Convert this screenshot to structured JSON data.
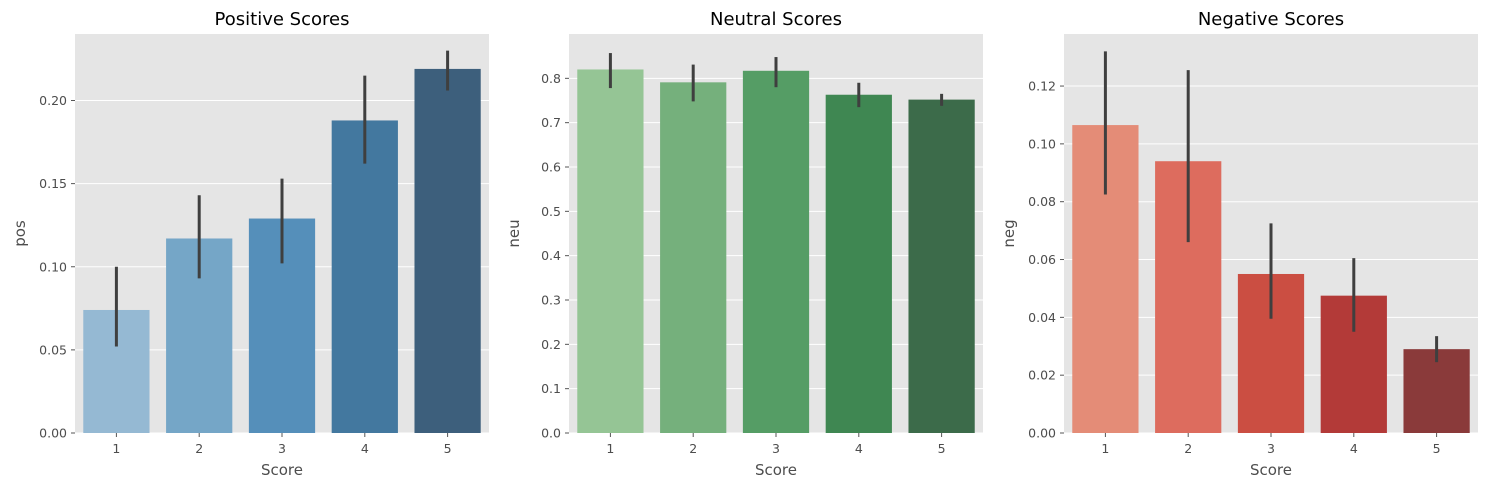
{
  "chart_data": [
    {
      "type": "bar",
      "title": "Positive Scores",
      "xlabel": "Score",
      "ylabel": "pos",
      "categories": [
        "1",
        "2",
        "3",
        "4",
        "5"
      ],
      "values": [
        0.074,
        0.117,
        0.129,
        0.188,
        0.219
      ],
      "error_low": [
        0.052,
        0.093,
        0.102,
        0.162,
        0.206
      ],
      "error_high": [
        0.1,
        0.143,
        0.153,
        0.215,
        0.23
      ],
      "ylim": [
        0,
        0.24
      ],
      "yticks": [
        0.0,
        0.05,
        0.1,
        0.15,
        0.2
      ],
      "ytick_labels": [
        "0.00",
        "0.05",
        "0.10",
        "0.15",
        "0.20"
      ],
      "colors": [
        "#95b9d3",
        "#75a6c7",
        "#558fba",
        "#43789f",
        "#3d5f7c"
      ],
      "grid": true
    },
    {
      "type": "bar",
      "title": "Neutral Scores",
      "xlabel": "Score",
      "ylabel": "neu",
      "categories": [
        "1",
        "2",
        "3",
        "4",
        "5"
      ],
      "values": [
        0.82,
        0.791,
        0.817,
        0.763,
        0.752
      ],
      "error_low": [
        0.778,
        0.748,
        0.78,
        0.735,
        0.738
      ],
      "error_high": [
        0.857,
        0.831,
        0.848,
        0.79,
        0.765
      ],
      "ylim": [
        0,
        0.9
      ],
      "yticks": [
        0.0,
        0.1,
        0.2,
        0.3,
        0.4,
        0.5,
        0.6,
        0.7,
        0.8
      ],
      "ytick_labels": [
        "0.0",
        "0.1",
        "0.2",
        "0.3",
        "0.4",
        "0.5",
        "0.6",
        "0.7",
        "0.8"
      ],
      "colors": [
        "#95c595",
        "#75b07c",
        "#559d65",
        "#3f8752",
        "#3c6b4a"
      ],
      "grid": true
    },
    {
      "type": "bar",
      "title": "Negative Scores",
      "xlabel": "Score",
      "ylabel": "neg",
      "categories": [
        "1",
        "2",
        "3",
        "4",
        "5"
      ],
      "values": [
        0.1065,
        0.094,
        0.055,
        0.0475,
        0.029
      ],
      "error_low": [
        0.0825,
        0.066,
        0.0395,
        0.035,
        0.0245
      ],
      "error_high": [
        0.132,
        0.1255,
        0.0725,
        0.0605,
        0.0335
      ],
      "ylim": [
        0,
        0.138
      ],
      "yticks": [
        0.0,
        0.02,
        0.04,
        0.06,
        0.08,
        0.1,
        0.12
      ],
      "ytick_labels": [
        "0.00",
        "0.02",
        "0.04",
        "0.06",
        "0.08",
        "0.10",
        "0.12"
      ],
      "colors": [
        "#e48c77",
        "#dd6c5e",
        "#cb4e42",
        "#b33a38",
        "#8a3a3a"
      ],
      "grid": true
    }
  ]
}
